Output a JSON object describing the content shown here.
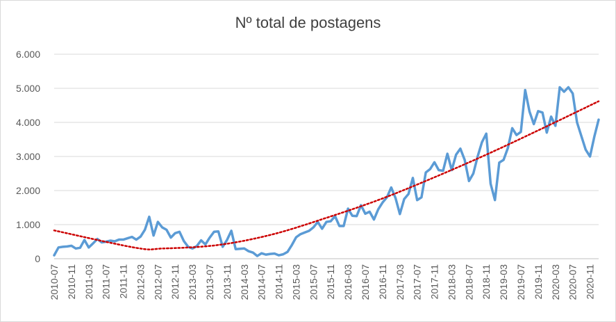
{
  "chart_data": {
    "type": "line",
    "title": "Nº total de postagens",
    "xlabel": "",
    "ylabel": "",
    "ylim": [
      0,
      6000
    ],
    "yticks": [
      0,
      1000,
      2000,
      3000,
      4000,
      5000,
      6000
    ],
    "ytick_labels": [
      "0",
      "1.000",
      "2.000",
      "3.000",
      "4.000",
      "5.000",
      "6.000"
    ],
    "xtick_labels": [
      "2010-07",
      "2010-11",
      "2011-03",
      "2011-07",
      "2011-11",
      "2012-03",
      "2012-07",
      "2012-11",
      "2013-03",
      "2013-07",
      "2013-11",
      "2014-03",
      "2014-07",
      "2014-11",
      "2015-03",
      "2015-07",
      "2015-11",
      "2016-03",
      "2016-07",
      "2016-11",
      "2017-03",
      "2017-07",
      "2017-11",
      "2018-03",
      "2018-07",
      "2018-11",
      "2019-03",
      "2019-07",
      "2019-11",
      "2020-03",
      "2020-07",
      "2020-11"
    ],
    "grid": true,
    "legend": "none",
    "series": [
      {
        "color": "#5b9bd5",
        "start": "2010-07",
        "values": [
          100,
          330,
          350,
          360,
          380,
          300,
          320,
          550,
          330,
          450,
          580,
          480,
          500,
          530,
          510,
          560,
          560,
          600,
          640,
          560,
          650,
          850,
          1230,
          680,
          1080,
          920,
          850,
          620,
          750,
          790,
          520,
          350,
          300,
          370,
          540,
          420,
          620,
          790,
          800,
          350,
          550,
          820,
          280,
          290,
          300,
          220,
          180,
          80,
          160,
          120,
          140,
          150,
          100,
          130,
          200,
          400,
          630,
          720,
          770,
          820,
          920,
          1080,
          880,
          1080,
          1100,
          1250,
          960,
          960,
          1470,
          1260,
          1250,
          1570,
          1320,
          1380,
          1150,
          1450,
          1650,
          1800,
          2090,
          1780,
          1310,
          1750,
          1900,
          2370,
          1720,
          1800,
          2530,
          2630,
          2830,
          2600,
          2580,
          3080,
          2600,
          3050,
          3230,
          2900,
          2280,
          2500,
          3000,
          3420,
          3670,
          2200,
          1720,
          2820,
          2900,
          3250,
          3830,
          3630,
          3720,
          4950,
          4320,
          3950,
          4330,
          4290,
          3700,
          4170,
          3900,
          5030,
          4900,
          5030,
          4850,
          4000,
          3600,
          3200,
          3000,
          3580,
          4080
        ]
      },
      {
        "type": "trendline-polynomial",
        "color": "#cc0000",
        "x_fraction": [
          0,
          0.15,
          0.2,
          0.3,
          0.4,
          0.5,
          0.6,
          0.7,
          0.8,
          0.9,
          1.0
        ],
        "values": [
          830,
          320,
          300,
          400,
          710,
          1200,
          1750,
          2400,
          3100,
          3850,
          4620
        ]
      }
    ]
  }
}
